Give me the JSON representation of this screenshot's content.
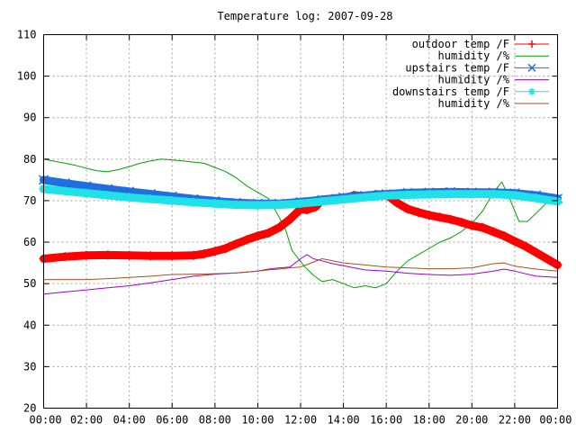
{
  "chart_data": {
    "type": "line",
    "title": "Temperature log: 2007-09-28",
    "xlabel": "",
    "ylabel": "",
    "x_ticks": [
      "00:00",
      "02:00",
      "04:00",
      "06:00",
      "08:00",
      "10:00",
      "12:00",
      "14:00",
      "16:00",
      "18:00",
      "20:00",
      "22:00",
      "00:00"
    ],
    "y_ticks": [
      "20",
      "30",
      "40",
      "50",
      "60",
      "70",
      "80",
      "90",
      "100",
      "110"
    ],
    "xlim": [
      0,
      24
    ],
    "ylim": [
      20,
      110
    ],
    "grid": true,
    "legend_position": "top-right",
    "series": [
      {
        "name": "outdoor temp /F",
        "color": "#ff0000",
        "marker": "plus",
        "points": [
          [
            0,
            56
          ],
          [
            1,
            56.5
          ],
          [
            2,
            56.8
          ],
          [
            3,
            56.9
          ],
          [
            4,
            56.8
          ],
          [
            5,
            56.7
          ],
          [
            6,
            56.7
          ],
          [
            7,
            56.8
          ],
          [
            7.5,
            57.2
          ],
          [
            8,
            57.8
          ],
          [
            8.5,
            58.5
          ],
          [
            9,
            59.6
          ],
          [
            9.5,
            60.6
          ],
          [
            10,
            61.5
          ],
          [
            10.5,
            62.2
          ],
          [
            11,
            63.5
          ],
          [
            11.5,
            65.5
          ],
          [
            11.8,
            67
          ],
          [
            12,
            68
          ],
          [
            12.3,
            67.8
          ],
          [
            12.7,
            68.5
          ],
          [
            13,
            70.2
          ],
          [
            13.5,
            70.5
          ],
          [
            14,
            70.5
          ],
          [
            14.5,
            71.3
          ],
          [
            15,
            71
          ],
          [
            15.5,
            71.5
          ],
          [
            16,
            71.5
          ],
          [
            16.5,
            69.5
          ],
          [
            17,
            68
          ],
          [
            17.5,
            67.2
          ],
          [
            18,
            66.5
          ],
          [
            18.5,
            66
          ],
          [
            19,
            65.5
          ],
          [
            19.5,
            64.8
          ],
          [
            20,
            64
          ],
          [
            20.5,
            63.5
          ],
          [
            21,
            62.5
          ],
          [
            21.5,
            61.5
          ],
          [
            22,
            60.2
          ],
          [
            22.5,
            59
          ],
          [
            23,
            57.5
          ],
          [
            23.5,
            56
          ],
          [
            24,
            54.5
          ]
        ]
      },
      {
        "name": "humidity /%",
        "color": "#00a000",
        "marker": "none",
        "points": [
          [
            0,
            80
          ],
          [
            0.5,
            79.5
          ],
          [
            1,
            79
          ],
          [
            1.5,
            78.5
          ],
          [
            2,
            77.8
          ],
          [
            2.5,
            77.2
          ],
          [
            3,
            77
          ],
          [
            3.5,
            77.5
          ],
          [
            4,
            78.2
          ],
          [
            4.5,
            79
          ],
          [
            5,
            79.6
          ],
          [
            5.5,
            80
          ],
          [
            6,
            79.8
          ],
          [
            6.5,
            79.6
          ],
          [
            7,
            79.3
          ],
          [
            7.5,
            79
          ],
          [
            8,
            78
          ],
          [
            8.5,
            77
          ],
          [
            9,
            75.5
          ],
          [
            9.5,
            73.5
          ],
          [
            10,
            72
          ],
          [
            10.5,
            70.5
          ],
          [
            11,
            66
          ],
          [
            11.3,
            63
          ],
          [
            11.6,
            58
          ],
          [
            11.9,
            56
          ],
          [
            12.2,
            54
          ],
          [
            12.6,
            52
          ],
          [
            13,
            50.5
          ],
          [
            13.5,
            51
          ],
          [
            14,
            50
          ],
          [
            14.5,
            49
          ],
          [
            15,
            49.5
          ],
          [
            15.5,
            49
          ],
          [
            16,
            50
          ],
          [
            16.5,
            53
          ],
          [
            17,
            55.5
          ],
          [
            17.5,
            57
          ],
          [
            18,
            58.5
          ],
          [
            18.5,
            60
          ],
          [
            19,
            61
          ],
          [
            19.5,
            62.5
          ],
          [
            20,
            64.5
          ],
          [
            20.5,
            67.5
          ],
          [
            21,
            72
          ],
          [
            21.4,
            74.5
          ],
          [
            21.8,
            70
          ],
          [
            22.2,
            65
          ],
          [
            22.6,
            65
          ],
          [
            23,
            67
          ],
          [
            23.5,
            69.5
          ],
          [
            24,
            71.5
          ]
        ]
      },
      {
        "name": "upstairs temp /F",
        "color": "#1e6fe0",
        "marker": "cross",
        "points": [
          [
            0,
            75
          ],
          [
            1,
            74.2
          ],
          [
            2,
            73.5
          ],
          [
            3,
            72.8
          ],
          [
            4,
            72.2
          ],
          [
            5,
            71.6
          ],
          [
            6,
            71
          ],
          [
            7,
            70.4
          ],
          [
            8,
            69.9
          ],
          [
            9,
            69.5
          ],
          [
            10,
            69.3
          ],
          [
            11,
            69.3
          ],
          [
            12,
            69.7
          ],
          [
            13,
            70.2
          ],
          [
            14,
            70.8
          ],
          [
            15,
            71.2
          ],
          [
            16,
            71.6
          ],
          [
            17,
            71.9
          ],
          [
            18,
            72
          ],
          [
            19,
            72.1
          ],
          [
            20,
            72
          ],
          [
            21,
            72
          ],
          [
            22,
            71.8
          ],
          [
            23,
            71.3
          ],
          [
            24,
            70.5
          ]
        ]
      },
      {
        "name": "humidity /%",
        "color": "#a000d0",
        "marker": "none",
        "points": [
          [
            0,
            47.5
          ],
          [
            1,
            48
          ],
          [
            2,
            48.5
          ],
          [
            3,
            49
          ],
          [
            4,
            49.5
          ],
          [
            5,
            50.2
          ],
          [
            6,
            51
          ],
          [
            7,
            51.8
          ],
          [
            8,
            52.3
          ],
          [
            9,
            52.6
          ],
          [
            10,
            53
          ],
          [
            10.5,
            53.5
          ],
          [
            11,
            53.8
          ],
          [
            11.5,
            54
          ],
          [
            12,
            56
          ],
          [
            12.3,
            57
          ],
          [
            12.6,
            56
          ],
          [
            13,
            55.5
          ],
          [
            13.5,
            54.8
          ],
          [
            14,
            54.3
          ],
          [
            14.5,
            53.8
          ],
          [
            15,
            53.3
          ],
          [
            16,
            53
          ],
          [
            17,
            52.5
          ],
          [
            18,
            52.2
          ],
          [
            19,
            52
          ],
          [
            20,
            52.3
          ],
          [
            21,
            53
          ],
          [
            21.5,
            53.5
          ],
          [
            22,
            53
          ],
          [
            23,
            51.8
          ],
          [
            24,
            51.5
          ]
        ]
      },
      {
        "name": "downstairs temp /F",
        "color": "#20e0e8",
        "marker": "star",
        "points": [
          [
            0,
            72.8
          ],
          [
            1,
            72.3
          ],
          [
            2,
            71.8
          ],
          [
            3,
            71.3
          ],
          [
            4,
            70.8
          ],
          [
            5,
            70.4
          ],
          [
            6,
            70
          ],
          [
            7,
            69.6
          ],
          [
            8,
            69.3
          ],
          [
            9,
            69
          ],
          [
            10,
            68.9
          ],
          [
            11,
            69
          ],
          [
            12,
            69.3
          ],
          [
            13,
            69.8
          ],
          [
            14,
            70.3
          ],
          [
            15,
            70.8
          ],
          [
            16,
            71.2
          ],
          [
            17,
            71.4
          ],
          [
            18,
            71.5
          ],
          [
            19,
            71.6
          ],
          [
            20,
            71.6
          ],
          [
            21,
            71.6
          ],
          [
            22,
            71.3
          ],
          [
            23,
            70.6
          ],
          [
            24,
            69.8
          ]
        ]
      },
      {
        "name": "humidity /%",
        "color": "#a0521e",
        "marker": "none",
        "points": [
          [
            0,
            51
          ],
          [
            1,
            51
          ],
          [
            2,
            51
          ],
          [
            3,
            51.2
          ],
          [
            4,
            51.5
          ],
          [
            5,
            51.8
          ],
          [
            6,
            52.2
          ],
          [
            7,
            52.3
          ],
          [
            8,
            52.4
          ],
          [
            9,
            52.6
          ],
          [
            10,
            53
          ],
          [
            10.5,
            53.3
          ],
          [
            11,
            53.5
          ],
          [
            11.5,
            53.8
          ],
          [
            12,
            54
          ],
          [
            12.5,
            55
          ],
          [
            13,
            56
          ],
          [
            13.5,
            55.5
          ],
          [
            14,
            55
          ],
          [
            15,
            54.5
          ],
          [
            16,
            54
          ],
          [
            17,
            53.8
          ],
          [
            18,
            53.6
          ],
          [
            19,
            53.6
          ],
          [
            20,
            53.8
          ],
          [
            21,
            54.8
          ],
          [
            21.5,
            55
          ],
          [
            22,
            54.2
          ],
          [
            23,
            53.5
          ],
          [
            24,
            53
          ]
        ]
      }
    ]
  }
}
